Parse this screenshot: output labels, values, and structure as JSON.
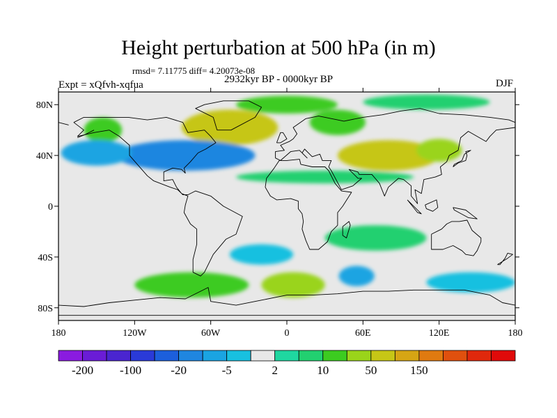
{
  "title": "Height perturbation at 500 hPa (in m)",
  "stats": "rmsd= 7.11775 diff= 4.20073e-08",
  "period": "2932kyr BP - 0000kyr BP",
  "experiment": "Expt = xQfvh-xqfua",
  "season": "DJF",
  "axes": {
    "lon_ticks": [
      {
        "value": -180,
        "label": "180"
      },
      {
        "value": -120,
        "label": "120W"
      },
      {
        "value": -60,
        "label": "60W"
      },
      {
        "value": 0,
        "label": "0"
      },
      {
        "value": 60,
        "label": "60E"
      },
      {
        "value": 120,
        "label": "120E"
      },
      {
        "value": 180,
        "label": "180"
      }
    ],
    "lat_ticks": [
      {
        "value": 80,
        "label": "80N"
      },
      {
        "value": 40,
        "label": "40N"
      },
      {
        "value": 0,
        "label": "0"
      },
      {
        "value": -40,
        "label": "40S"
      },
      {
        "value": -80,
        "label": "80S"
      }
    ],
    "lon_range": [
      -180,
      180
    ],
    "lat_range": [
      -90,
      90
    ]
  },
  "colorbar": {
    "colors": [
      "#8a1be0",
      "#6a1cd6",
      "#4a25d0",
      "#2a3ad8",
      "#1c5fdc",
      "#1f86e0",
      "#1aa4e2",
      "#18c0e0",
      "#e8e8e8",
      "#1fd7a0",
      "#22d070",
      "#3ccb20",
      "#9ad41a",
      "#c6c616",
      "#d6a514",
      "#e07a10",
      "#e0500e",
      "#e0280c",
      "#e00a0a"
    ],
    "labels": [
      {
        "boundary": 1,
        "text": "-200"
      },
      {
        "boundary": 3,
        "text": "-100"
      },
      {
        "boundary": 5,
        "text": "-20"
      },
      {
        "boundary": 7,
        "text": "-5"
      },
      {
        "boundary": 9,
        "text": "2"
      },
      {
        "boundary": 11,
        "text": "10"
      },
      {
        "boundary": 13,
        "text": "50"
      },
      {
        "boundary": 15,
        "text": "150"
      }
    ]
  },
  "chart_data": {
    "type": "heatmap",
    "title": "Height perturbation at 500 hPa (in m)",
    "variable": "500 hPa geopotential height perturbation (m)",
    "season": "DJF",
    "anomaly_regions": [
      {
        "region": "Greenland / North Atlantic",
        "lon": -45,
        "lat": 62,
        "rx": 38,
        "ry": 14,
        "level": 13
      },
      {
        "region": "Arctic Europe",
        "lon": 0,
        "lat": 80,
        "rx": 40,
        "ry": 7,
        "level": 11
      },
      {
        "region": "Eastern Europe",
        "lon": 40,
        "lat": 66,
        "rx": 22,
        "ry": 10,
        "level": 11
      },
      {
        "region": "Siberia / Arctic",
        "lon": 110,
        "lat": 82,
        "rx": 50,
        "ry": 6,
        "level": 10
      },
      {
        "region": "Central Asia",
        "lon": 80,
        "lat": 40,
        "rx": 40,
        "ry": 12,
        "level": 13
      },
      {
        "region": "East Asia",
        "lon": 120,
        "lat": 44,
        "rx": 18,
        "ry": 9,
        "level": 12
      },
      {
        "region": "North Pacific",
        "lon": -145,
        "lat": 60,
        "rx": 15,
        "ry": 10,
        "level": 11
      },
      {
        "region": "North America / Atlantic",
        "lon": -80,
        "lat": 40,
        "rx": 55,
        "ry": 12,
        "level": 5
      },
      {
        "region": "NE Pacific",
        "lon": -150,
        "lat": 42,
        "rx": 28,
        "ry": 10,
        "level": 6
      },
      {
        "region": "North Africa",
        "lon": 30,
        "lat": 23,
        "rx": 70,
        "ry": 5,
        "level": 10
      },
      {
        "region": "South Atlantic",
        "lon": -20,
        "lat": -38,
        "rx": 25,
        "ry": 8,
        "level": 7
      },
      {
        "region": "Southern Ocean (S. America)",
        "lon": -75,
        "lat": -62,
        "rx": 45,
        "ry": 10,
        "level": 11
      },
      {
        "region": "Southern Ocean (Atlantic)",
        "lon": 5,
        "lat": -62,
        "rx": 25,
        "ry": 10,
        "level": 12
      },
      {
        "region": "South Indian Ocean",
        "lon": 55,
        "lat": -55,
        "rx": 14,
        "ry": 8,
        "level": 6
      },
      {
        "region": "Southern Ocean (Pacific)",
        "lon": 145,
        "lat": -60,
        "rx": 35,
        "ry": 8,
        "level": 7
      },
      {
        "region": "Indian Ocean",
        "lon": 70,
        "lat": -25,
        "rx": 40,
        "ry": 10,
        "level": 10
      }
    ],
    "units": "m"
  }
}
